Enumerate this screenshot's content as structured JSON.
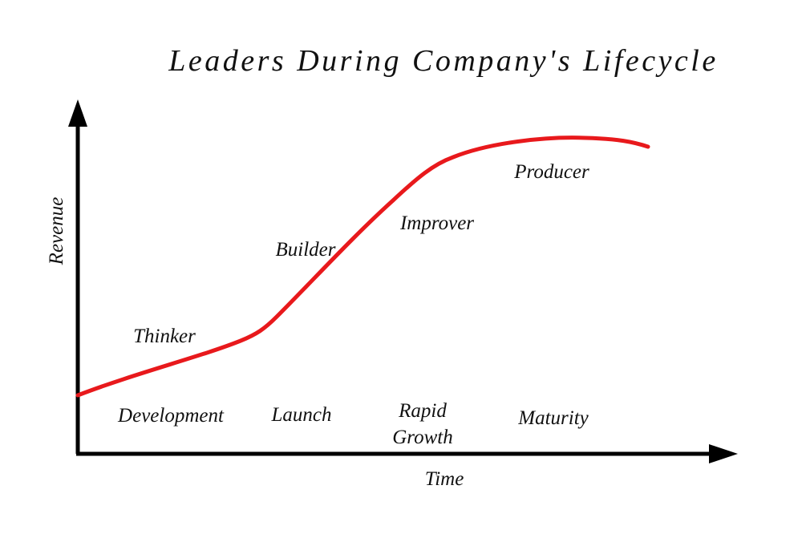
{
  "title": "Leaders During Company's Lifecycle",
  "axes": {
    "x_label": "Time",
    "y_label": "Revenue"
  },
  "curve_color": "#e8191c",
  "leaders": [
    "Thinker",
    "Builder",
    "Improver",
    "Producer"
  ],
  "stages": {
    "development": "Development",
    "launch": "Launch",
    "rapid_line1": "Rapid",
    "rapid_line2": "Growth",
    "maturity": "Maturity"
  }
}
